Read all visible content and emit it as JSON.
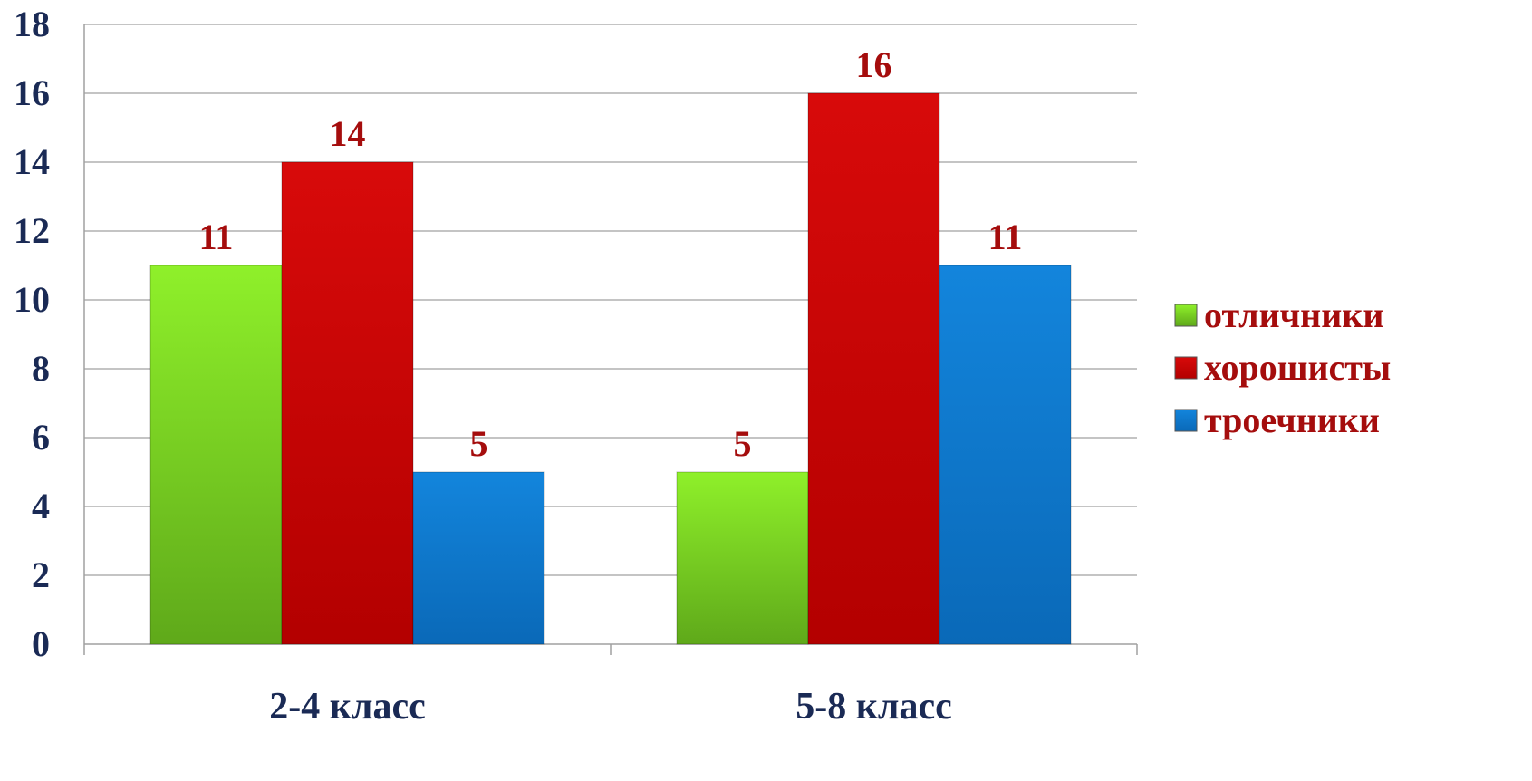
{
  "chart_data": {
    "type": "bar",
    "categories": [
      "2-4 класс",
      "5-8 класс"
    ],
    "series": [
      {
        "name": "отличники",
        "values": [
          11,
          5
        ],
        "color": "#7ed321"
      },
      {
        "name": "хорошисты",
        "values": [
          14,
          16
        ],
        "color": "#cc0000"
      },
      {
        "name": "троечники",
        "values": [
          5,
          11
        ],
        "color": "#0b78cc"
      }
    ],
    "title": "",
    "xlabel": "",
    "ylabel": "",
    "ylim": [
      0,
      18
    ],
    "yticks": [
      "0",
      "2",
      "4",
      "6",
      "8",
      "10",
      "12",
      "14",
      "16",
      "18"
    ],
    "grid": true,
    "legend": "right",
    "colors": {
      "axis_text": "#1a2a55",
      "data_label": "#a50d0d",
      "legend_text": "#a50d0d",
      "gridline": "#b0b0b0"
    }
  }
}
